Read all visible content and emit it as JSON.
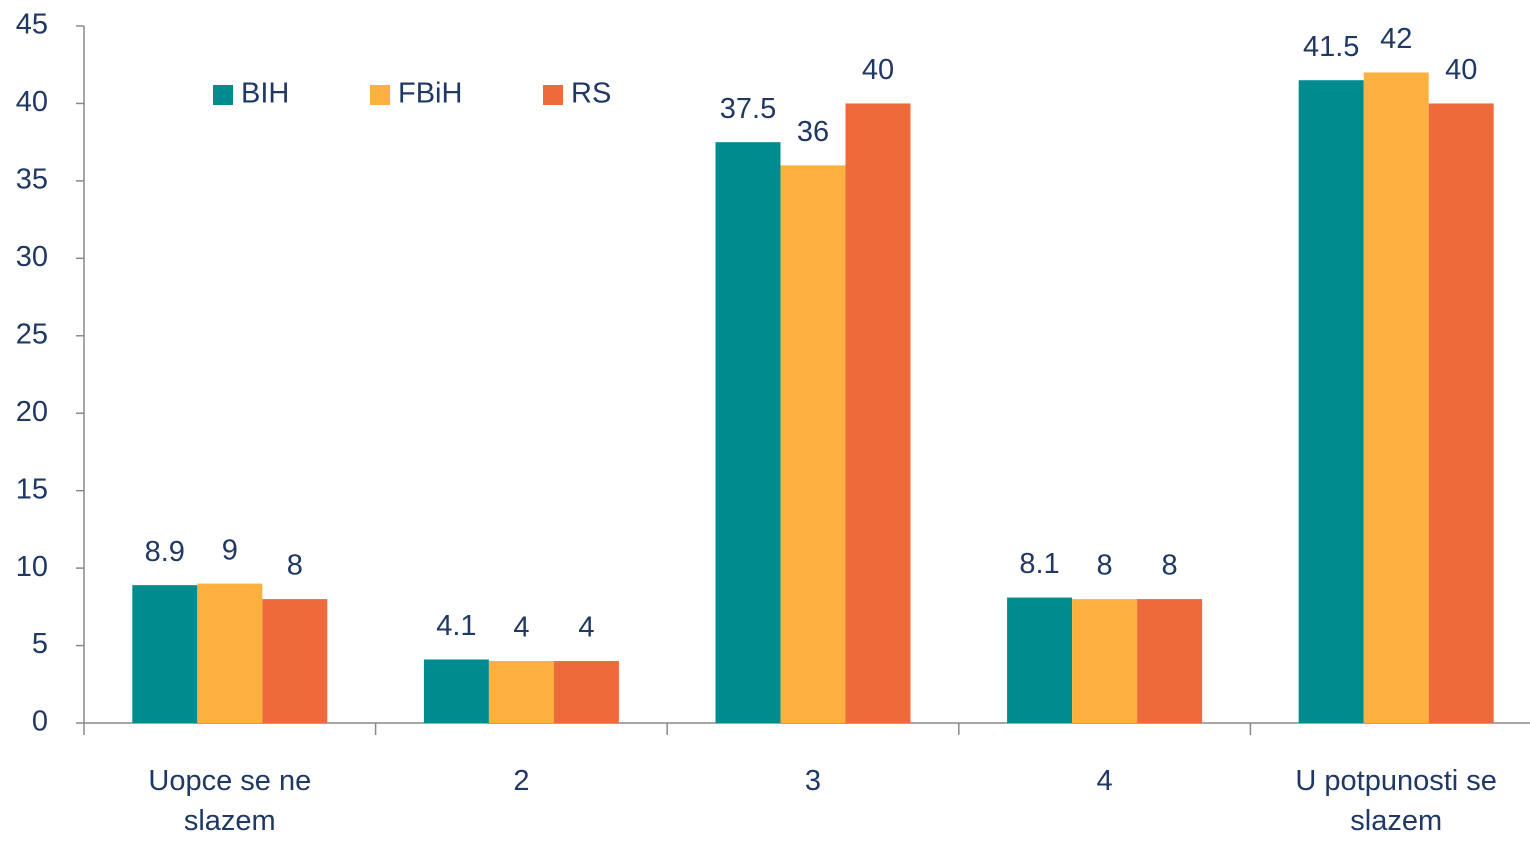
{
  "chart_data": {
    "type": "bar",
    "categories": [
      "Uopce se ne slazem",
      "2",
      "3",
      "4",
      "U potpunosti se slazem"
    ],
    "series": [
      {
        "name": "BIH",
        "color": "#008B8E",
        "values": [
          8.9,
          4.1,
          37.5,
          8.1,
          41.5
        ]
      },
      {
        "name": "FBiH",
        "color": "#FBB040",
        "values": [
          9,
          4,
          36,
          8,
          42
        ]
      },
      {
        "name": "RS",
        "color": "#EE6A3A",
        "values": [
          8,
          4,
          40,
          8,
          40
        ]
      }
    ],
    "ylim": [
      0,
      45
    ],
    "yticks": [
      0,
      5,
      10,
      15,
      20,
      25,
      30,
      35,
      40,
      45
    ],
    "grid": false,
    "legend": "top-left",
    "data_labels": true
  }
}
